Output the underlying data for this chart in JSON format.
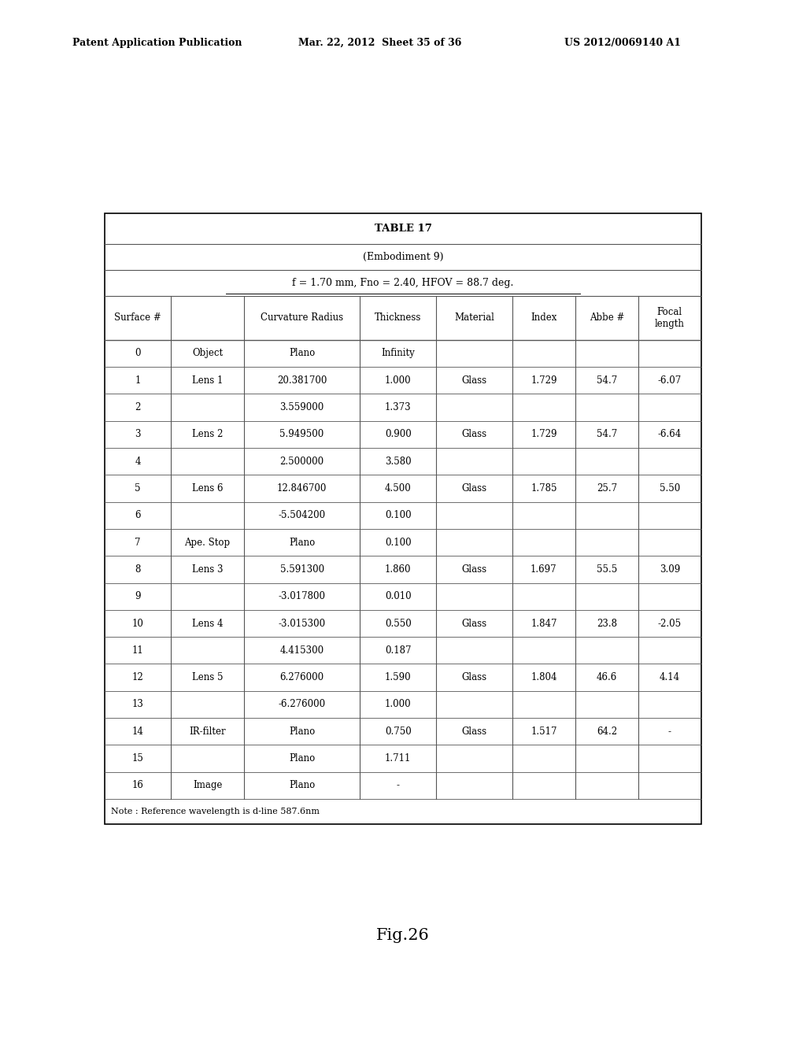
{
  "header_left": "Patent Application Publication",
  "header_mid": "Mar. 22, 2012  Sheet 35 of 36",
  "header_right": "US 2012/0069140 A1",
  "table_title": "TABLE 17",
  "table_subtitle": "(Embodiment 9)",
  "table_param": "f = 1.70 mm, Fno = 2.40, HFOV = 88.7 deg.",
  "col_headers": [
    "Surface #",
    "",
    "Curvature Radius",
    "Thickness",
    "Material",
    "Index",
    "Abbe #",
    "Focal\nlength"
  ],
  "rows": [
    [
      "0",
      "Object",
      "Plano",
      "Infinity",
      "",
      "",
      "",
      ""
    ],
    [
      "1",
      "Lens 1",
      "20.381700",
      "1.000",
      "Glass",
      "1.729",
      "54.7",
      "-6.07"
    ],
    [
      "2",
      "",
      "3.559000",
      "1.373",
      "",
      "",
      "",
      ""
    ],
    [
      "3",
      "Lens 2",
      "5.949500",
      "0.900",
      "Glass",
      "1.729",
      "54.7",
      "-6.64"
    ],
    [
      "4",
      "",
      "2.500000",
      "3.580",
      "",
      "",
      "",
      ""
    ],
    [
      "5",
      "Lens 6",
      "12.846700",
      "4.500",
      "Glass",
      "1.785",
      "25.7",
      "5.50"
    ],
    [
      "6",
      "",
      "-5.504200",
      "0.100",
      "",
      "",
      "",
      ""
    ],
    [
      "7",
      "Ape. Stop",
      "Plano",
      "0.100",
      "",
      "",
      "",
      ""
    ],
    [
      "8",
      "Lens 3",
      "5.591300",
      "1.860",
      "Glass",
      "1.697",
      "55.5",
      "3.09"
    ],
    [
      "9",
      "",
      "-3.017800",
      "0.010",
      "",
      "",
      "",
      ""
    ],
    [
      "10",
      "Lens 4",
      "-3.015300",
      "0.550",
      "Glass",
      "1.847",
      "23.8",
      "-2.05"
    ],
    [
      "11",
      "",
      "4.415300",
      "0.187",
      "",
      "",
      "",
      ""
    ],
    [
      "12",
      "Lens 5",
      "6.276000",
      "1.590",
      "Glass",
      "1.804",
      "46.6",
      "4.14"
    ],
    [
      "13",
      "",
      "-6.276000",
      "1.000",
      "",
      "",
      "",
      ""
    ],
    [
      "14",
      "IR-filter",
      "Plano",
      "0.750",
      "Glass",
      "1.517",
      "64.2",
      "-"
    ],
    [
      "15",
      "",
      "Plano",
      "1.711",
      "",
      "",
      "",
      ""
    ],
    [
      "16",
      "Image",
      "Plano",
      "-",
      "",
      "",
      "",
      ""
    ]
  ],
  "note": "Note : Reference wavelength is d-line 587.6nm",
  "fig_label": "Fig.26",
  "background_color": "#ffffff",
  "text_color": "#000000"
}
